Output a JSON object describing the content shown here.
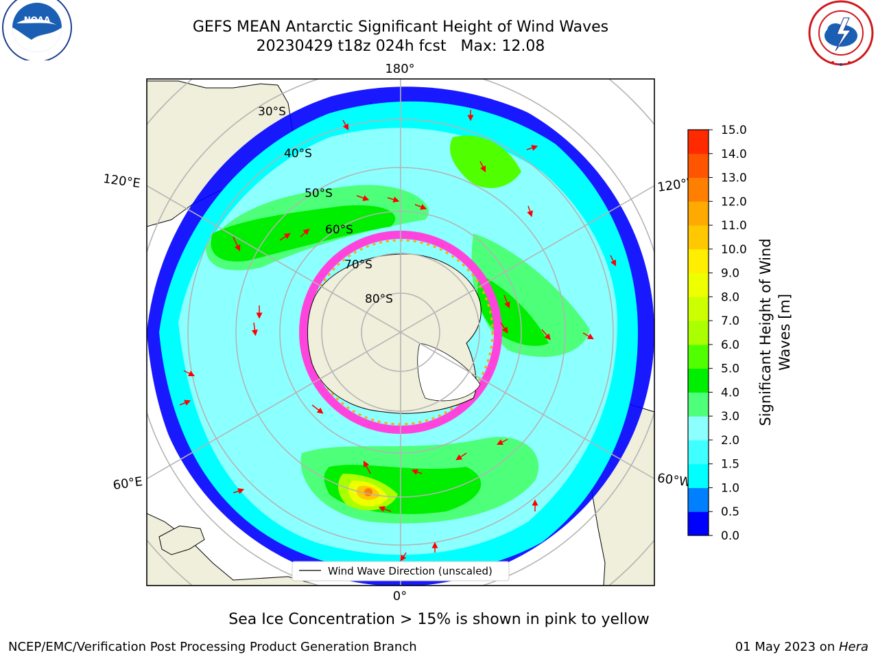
{
  "header": {
    "title_line1": "GEFS MEAN Antarctic Significant Height of Wind Waves",
    "title_line2": "20230429 t18z 024h fcst   Max: 12.08"
  },
  "logos": {
    "left": {
      "icon": "noaa-logo-icon",
      "text": "NOAA",
      "ring_text": "NATIONAL OCEANIC AND ATMOSPHERIC ADMINISTRATION · U.S. DEPARTMENT OF COMMERCE"
    },
    "right": {
      "icon": "nws-logo-icon",
      "ring_text": "NATIONAL WEATHER SERVICE"
    }
  },
  "map": {
    "projection": "south-polar-stereographic",
    "longitude_labels": {
      "top": "180°",
      "bottom": "0°",
      "upper_left": "120°E",
      "upper_right": "120°W",
      "lower_left": "60°E",
      "lower_right": "60°W"
    },
    "latitude_labels": [
      "30°S",
      "40°S",
      "50°S",
      "60°S",
      "70°S",
      "80°S"
    ],
    "legend": {
      "label": "Wind Wave Direction (unscaled)"
    },
    "colors": {
      "land": "#efefdc",
      "arrows": "#ff0000",
      "graticule": "#b4b4b4",
      "sea_ice": "#ff44dd"
    },
    "max_value": 12.08
  },
  "colorbar": {
    "label": "Significant Height of Wind Waves [m]",
    "label_line1": "Significant Height of Wind",
    "label_line2": "Waves [m]",
    "tick_labels": [
      "0.0",
      "0.5",
      "1.0",
      "1.5",
      "2.0",
      "3.0",
      "4.0",
      "5.0",
      "6.0",
      "7.0",
      "8.0",
      "9.0",
      "10.0",
      "11.0",
      "12.0",
      "13.0",
      "14.0",
      "15.0"
    ],
    "colors": [
      "#0000ff",
      "#0080ff",
      "#00ffff",
      "#40ffff",
      "#8cffff",
      "#4eff7a",
      "#00ee00",
      "#50ff00",
      "#aaff00",
      "#ccff00",
      "#eeff00",
      "#ffee00",
      "#ffc800",
      "#ffaa00",
      "#ff8000",
      "#ff5500",
      "#ff2a00"
    ]
  },
  "footer": {
    "subtitle": "Sea Ice Concentration > 15% is shown in pink to yellow",
    "credit_left": "NCEP/EMC/Verification Post Processing Product Generation Branch",
    "credit_right_prefix": "01 May 2023 on ",
    "credit_right_host": "Hera"
  }
}
